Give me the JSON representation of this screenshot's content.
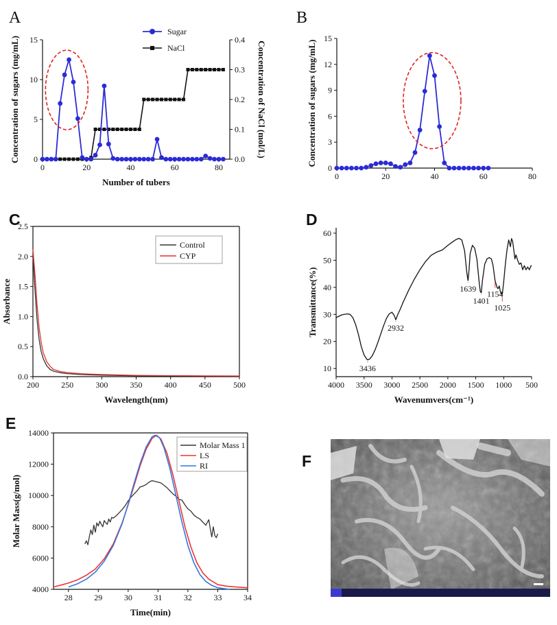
{
  "panels": {
    "A": {
      "letter": "A"
    },
    "B": {
      "letter": "B"
    },
    "C": {
      "letter": "C"
    },
    "D": {
      "letter": "D"
    },
    "E": {
      "letter": "E"
    },
    "F": {
      "letter": "F"
    }
  },
  "chart_data": [
    {
      "id": "A",
      "type": "line",
      "xlabel": "Number of tubers",
      "ylabel": "Concentration of sugars (mg/mL)",
      "y2label": "Concentration of  NaCl (mol/L)",
      "xlim": [
        0,
        85
      ],
      "ylim": [
        0,
        15
      ],
      "y2lim": [
        0,
        0.4
      ],
      "xticks": [
        0,
        20,
        40,
        60,
        80
      ],
      "yticks": [
        0,
        5,
        10,
        15
      ],
      "y2ticks": [
        0.0,
        0.1,
        0.2,
        0.3,
        0.4
      ],
      "legend_position": "top-center",
      "series": [
        {
          "name": "Sugar",
          "axis": "left",
          "color": "#2b2bd6",
          "marker": "circle",
          "x": [
            0,
            2,
            4,
            6,
            8,
            10,
            12,
            14,
            16,
            18,
            20,
            22,
            24,
            26,
            28,
            30,
            32,
            34,
            36,
            38,
            40,
            42,
            44,
            46,
            48,
            50,
            52,
            54,
            56,
            58,
            60,
            62,
            64,
            66,
            68,
            70,
            72,
            74,
            76,
            78,
            80,
            82
          ],
          "y": [
            0,
            0,
            0,
            0,
            7.0,
            10.6,
            12.5,
            9.7,
            5.1,
            0.2,
            0,
            0,
            0.5,
            1.8,
            9.2,
            1.9,
            0.1,
            0,
            0,
            0,
            0,
            0,
            0,
            0,
            0,
            0,
            2.5,
            0.2,
            0,
            0,
            0,
            0,
            0,
            0,
            0,
            0,
            0,
            0.4,
            0.1,
            0,
            0,
            0
          ]
        },
        {
          "name": "NaCl",
          "axis": "right",
          "color": "#111111",
          "marker": "square",
          "x": [
            0,
            2,
            4,
            6,
            8,
            10,
            12,
            14,
            16,
            18,
            20,
            22,
            24,
            26,
            28,
            30,
            32,
            34,
            36,
            38,
            40,
            42,
            44,
            46,
            48,
            50,
            52,
            54,
            56,
            58,
            60,
            62,
            64,
            66,
            68,
            70,
            72,
            74,
            76,
            78,
            80,
            82
          ],
          "y": [
            0,
            0,
            0,
            0,
            0,
            0,
            0,
            0,
            0,
            0,
            0,
            0.005,
            0.1,
            0.1,
            0.1,
            0.1,
            0.1,
            0.1,
            0.1,
            0.1,
            0.1,
            0.1,
            0.1,
            0.2,
            0.2,
            0.2,
            0.2,
            0.2,
            0.2,
            0.2,
            0.2,
            0.2,
            0.2,
            0.3,
            0.3,
            0.3,
            0.3,
            0.3,
            0.3,
            0.3,
            0.3,
            0.3
          ]
        }
      ],
      "annotation": {
        "type": "dashed-ellipse",
        "color": "#e02020",
        "around": "first sugar peak"
      }
    },
    {
      "id": "B",
      "type": "line",
      "xlabel": "",
      "ylabel": "Concentration of sugars (mg/mL)",
      "xlim": [
        0,
        80
      ],
      "ylim": [
        0,
        15
      ],
      "xticks": [
        0,
        20,
        40,
        60,
        80
      ],
      "yticks": [
        0,
        3,
        6,
        9,
        12,
        15
      ],
      "series": [
        {
          "name": "",
          "color": "#2b2bd6",
          "marker": "circle",
          "x": [
            0,
            2,
            4,
            6,
            8,
            10,
            12,
            14,
            16,
            18,
            20,
            22,
            24,
            26,
            28,
            30,
            32,
            34,
            36,
            38,
            40,
            42,
            44,
            46,
            48,
            50,
            52,
            54,
            56,
            58,
            60,
            62
          ],
          "y": [
            0,
            0,
            0,
            0,
            0,
            0,
            0.1,
            0.3,
            0.5,
            0.6,
            0.6,
            0.5,
            0.2,
            0.1,
            0.4,
            0.6,
            1.8,
            4.4,
            8.9,
            13.0,
            10.7,
            4.8,
            0.6,
            0,
            0,
            0,
            0,
            0,
            0,
            0,
            0,
            0
          ]
        }
      ],
      "annotation": {
        "type": "dashed-ellipse",
        "color": "#e02020",
        "around": "main peak"
      }
    },
    {
      "id": "C",
      "type": "line",
      "xlabel": "Wavelength(nm)",
      "ylabel": "Absorbance",
      "xlim": [
        200,
        500
      ],
      "ylim": [
        0,
        2.5
      ],
      "xticks": [
        200,
        250,
        300,
        350,
        400,
        450,
        500
      ],
      "yticks": [
        0.0,
        0.5,
        1.0,
        1.5,
        2.0,
        2.5
      ],
      "legend_position": "top-right",
      "series": [
        {
          "name": "Control",
          "color": "#333333",
          "x": [
            200,
            203,
            206,
            209,
            212,
            215,
            220,
            225,
            230,
            240,
            250,
            270,
            300,
            350,
            400,
            450,
            500
          ],
          "y": [
            2.02,
            1.45,
            0.95,
            0.62,
            0.42,
            0.3,
            0.18,
            0.12,
            0.09,
            0.065,
            0.05,
            0.035,
            0.025,
            0.015,
            0.012,
            0.01,
            0.008
          ]
        },
        {
          "name": "CYP",
          "color": "#e03030",
          "x": [
            200,
            203,
            206,
            209,
            212,
            215,
            220,
            225,
            230,
            240,
            250,
            270,
            300,
            350,
            400,
            450,
            500
          ],
          "y": [
            2.12,
            1.7,
            1.2,
            0.82,
            0.57,
            0.4,
            0.25,
            0.17,
            0.12,
            0.085,
            0.068,
            0.048,
            0.035,
            0.022,
            0.016,
            0.013,
            0.011
          ]
        }
      ]
    },
    {
      "id": "D",
      "type": "line",
      "xlabel": "Wavenumvers(cm⁻¹)",
      "ylabel": "Transmittance(%)",
      "xlim": [
        4000,
        500
      ],
      "ylim": [
        7,
        62
      ],
      "xticks": [
        4000,
        3500,
        3000,
        2500,
        2000,
        1500,
        1000,
        500
      ],
      "yticks": [
        10,
        20,
        30,
        40,
        50,
        60
      ],
      "series": [
        {
          "name": "",
          "color": "#111111",
          "x": [
            4000,
            3900,
            3800,
            3750,
            3700,
            3650,
            3600,
            3550,
            3500,
            3450,
            3436,
            3400,
            3350,
            3300,
            3250,
            3200,
            3150,
            3100,
            3050,
            3000,
            2960,
            2932,
            2900,
            2850,
            2800,
            2700,
            2600,
            2500,
            2400,
            2300,
            2200,
            2100,
            2000,
            1900,
            1850,
            1800,
            1750,
            1700,
            1680,
            1660,
            1639,
            1620,
            1600,
            1560,
            1520,
            1480,
            1440,
            1420,
            1401,
            1380,
            1340,
            1300,
            1260,
            1220,
            1190,
            1170,
            1154,
            1120,
            1100,
            1080,
            1060,
            1040,
            1025,
            1000,
            970,
            940,
            910,
            880,
            860,
            840,
            820,
            800,
            780,
            750,
            720,
            690,
            660,
            630,
            600,
            570,
            540,
            510,
            500
          ],
          "y": [
            28.8,
            29.8,
            30.2,
            30.0,
            28.8,
            26.2,
            22.5,
            18.2,
            15.0,
            13.4,
            13.2,
            13.5,
            14.8,
            17.0,
            19.8,
            22.8,
            25.8,
            28.5,
            30.2,
            30.8,
            29.6,
            28.0,
            29.8,
            32.0,
            34.5,
            39.0,
            43.0,
            46.5,
            49.5,
            51.8,
            53.0,
            53.8,
            55.5,
            57.0,
            57.7,
            58.1,
            57.5,
            53.5,
            49.5,
            45.5,
            42.5,
            46.5,
            52.5,
            55.5,
            54.5,
            50.5,
            42.0,
            38.5,
            38.0,
            42.5,
            48.5,
            50.5,
            51.0,
            50.5,
            48.0,
            45.0,
            42.5,
            40.0,
            39.5,
            40.5,
            38.5,
            37.5,
            37.5,
            42.0,
            48.5,
            54.0,
            57.5,
            55.0,
            58.0,
            57.0,
            54.0,
            50.5,
            52.0,
            50.0,
            48.5,
            49.0,
            46.5,
            48.0,
            46.5,
            47.5,
            46.5,
            48.0,
            47.8
          ]
        }
      ],
      "annotations": [
        {
          "label": "3436",
          "x": 3436,
          "y": 13.2,
          "text_y": 10.0
        },
        {
          "label": "2932",
          "x": 2932,
          "y": 28.0,
          "text_y": 25.0
        },
        {
          "label": "1639",
          "x": 1639,
          "y": 42.5,
          "text_y": 39.5
        },
        {
          "label": "1401",
          "x": 1401,
          "y": 38.0,
          "text_y": 35.0
        },
        {
          "label": "1154",
          "x": 1154,
          "y": 42.5,
          "text_y": 37.5
        },
        {
          "label": "1025",
          "x": 1025,
          "y": 37.5,
          "text_y": 32.5
        }
      ]
    },
    {
      "id": "E",
      "type": "line",
      "xlabel": "Time(min)",
      "ylabel": "Molar Mass(g/mol)",
      "xlim": [
        27.5,
        34
      ],
      "ylim": [
        4000,
        14000
      ],
      "xticks": [
        28,
        29,
        30,
        31,
        32,
        33,
        34
      ],
      "yticks": [
        4000,
        6000,
        8000,
        10000,
        12000,
        14000
      ],
      "legend_position": "top-right",
      "series": [
        {
          "name": "Molar Mass 1",
          "color": "#333333",
          "x": [
            28.55,
            28.6,
            28.65,
            28.7,
            28.75,
            28.8,
            28.85,
            28.9,
            28.95,
            29.0,
            29.05,
            29.1,
            29.15,
            29.2,
            29.25,
            29.3,
            29.35,
            29.4,
            29.45,
            29.5,
            29.6,
            29.7,
            29.8,
            29.9,
            30.0,
            30.1,
            30.2,
            30.3,
            30.4,
            30.5,
            30.6,
            30.7,
            30.8,
            30.9,
            31.0,
            31.1,
            31.2,
            31.3,
            31.4,
            31.5,
            31.6,
            31.7,
            31.8,
            31.9,
            32.0,
            32.1,
            32.2,
            32.3,
            32.4,
            32.5,
            32.6,
            32.7,
            32.75,
            32.8,
            32.85,
            32.9,
            32.95,
            33.0
          ],
          "y": [
            6900,
            7100,
            6850,
            7350,
            7800,
            7500,
            8100,
            7650,
            8250,
            8050,
            8350,
            8150,
            8000,
            8400,
            8250,
            8150,
            8500,
            8300,
            8600,
            8550,
            8700,
            8900,
            9100,
            9350,
            9650,
            9900,
            10100,
            10300,
            10550,
            10600,
            10700,
            10850,
            10950,
            10900,
            10850,
            10800,
            10650,
            10500,
            10300,
            10100,
            9950,
            9750,
            9700,
            9400,
            9150,
            9000,
            8750,
            8600,
            8500,
            8300,
            8100,
            8450,
            7850,
            7350,
            8000,
            7450,
            7300,
            7550
          ]
        },
        {
          "name": "LS",
          "color": "#ee3333",
          "x": [
            27.5,
            27.8,
            28.0,
            28.3,
            28.6,
            28.9,
            29.2,
            29.5,
            29.8,
            30.0,
            30.2,
            30.4,
            30.6,
            30.8,
            30.95,
            31.1,
            31.3,
            31.5,
            31.7,
            31.9,
            32.1,
            32.3,
            32.5,
            32.7,
            33.0,
            33.3,
            33.6,
            34.0
          ],
          "y": [
            4150,
            4300,
            4400,
            4600,
            4900,
            5300,
            5950,
            6900,
            8250,
            9400,
            10650,
            11900,
            12950,
            13650,
            13850,
            13600,
            12700,
            11300,
            9650,
            8000,
            6700,
            5700,
            5050,
            4650,
            4300,
            4200,
            4150,
            4100
          ]
        },
        {
          "name": "RI",
          "color": "#3377dd",
          "x": [
            28.0,
            28.3,
            28.6,
            28.9,
            29.2,
            29.5,
            29.8,
            30.0,
            30.2,
            30.4,
            30.6,
            30.8,
            30.9,
            31.05,
            31.2,
            31.4,
            31.6,
            31.8,
            32.0,
            32.2,
            32.4,
            32.6,
            32.8,
            33.0,
            33.2,
            33.4
          ],
          "y": [
            4150,
            4350,
            4650,
            5100,
            5800,
            6800,
            8200,
            9450,
            10800,
            12050,
            13100,
            13750,
            13850,
            13700,
            13050,
            11700,
            10000,
            8300,
            6800,
            5700,
            4950,
            4500,
            4250,
            4100,
            4050,
            4000
          ]
        }
      ]
    }
  ]
}
